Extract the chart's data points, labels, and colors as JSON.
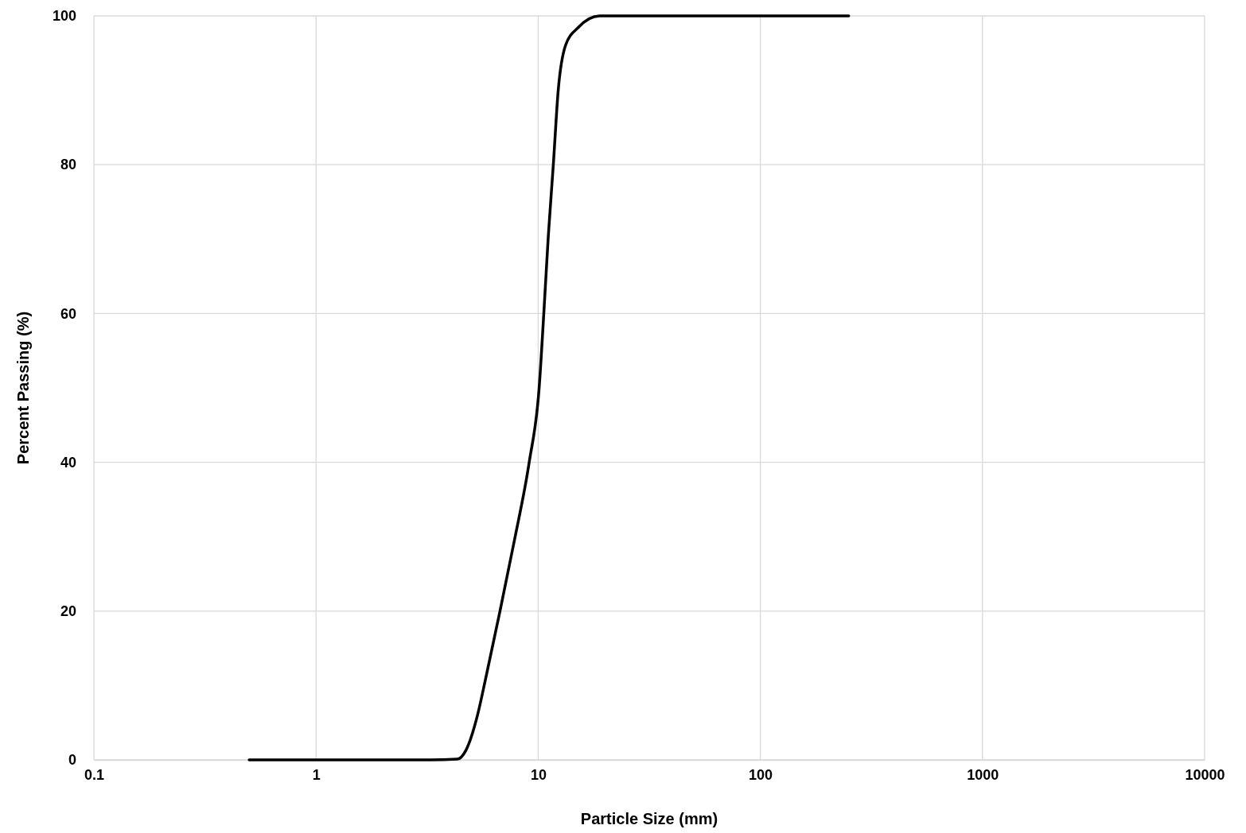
{
  "chart_data": {
    "type": "line",
    "xlabel": "Particle Size (mm)",
    "ylabel": "Percent Passing (%)",
    "log": "x",
    "grid": true,
    "marker": "none",
    "line_style": "solid",
    "xlim": [
      0.1,
      10000
    ],
    "xticks": [
      0.1,
      1,
      10,
      100,
      1000,
      10000
    ],
    "ylim": [
      0,
      100
    ],
    "yticks": [
      0,
      20,
      40,
      60,
      80,
      100
    ],
    "series": [
      {
        "color": "#000000",
        "x": [
          0.5,
          1,
          2,
          3.25,
          4.33,
          4.73,
          5.33,
          5.79,
          6.73,
          7.84,
          9.11,
          10.1,
          10.6,
          11.1,
          11.7,
          12.3,
          13.3,
          15.1,
          18.9,
          100,
          250
        ],
        "values": [
          0,
          0,
          0,
          0,
          0.1,
          1.3,
          6,
          10.8,
          20,
          29.7,
          40,
          50,
          60,
          70.3,
          80,
          89.9,
          96.1,
          98.4,
          100,
          100,
          100
        ]
      }
    ]
  }
}
